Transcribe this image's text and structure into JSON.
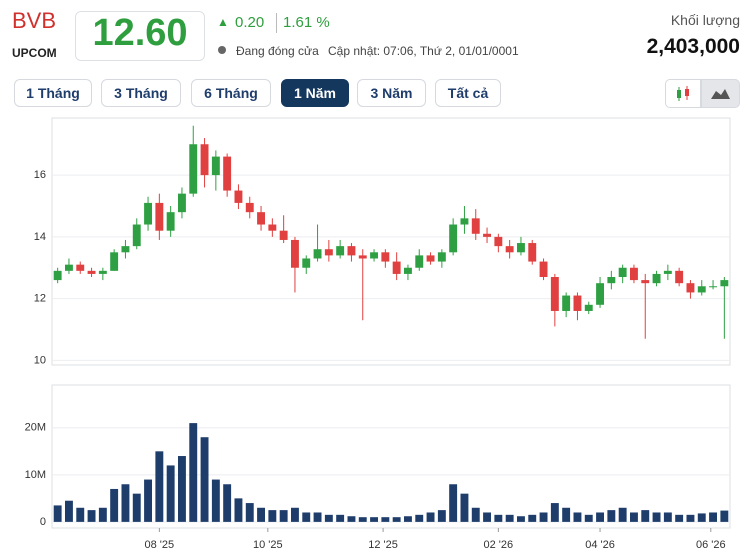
{
  "header": {
    "symbol": "BVB",
    "exchange": "UPCOM",
    "price": "12.60",
    "change": "0.20",
    "change_pct": "1.61 %",
    "status": "Đang đóng cửa",
    "updated": "Cập nhật: 07:06, Thứ 2, 01/01/0001",
    "volume_label": "Khối lượng",
    "volume": "2,403,000"
  },
  "ranges": {
    "buttons": [
      "1 Tháng",
      "3 Tháng",
      "6 Tháng",
      "1 Năm",
      "3 Năm",
      "Tất cả"
    ],
    "active": 3
  },
  "chart_data": [
    {
      "type": "candlestick",
      "up_color": "#2ea043",
      "down_color": "#e0403f",
      "grid": true,
      "open": [
        12.6,
        12.9,
        13.1,
        12.9,
        12.8,
        12.9,
        13.5,
        13.7,
        14.4,
        15.1,
        14.2,
        14.8,
        15.4,
        17.0,
        16.0,
        16.6,
        15.5,
        15.1,
        14.8,
        14.4,
        14.2,
        13.9,
        13.0,
        13.3,
        13.6,
        13.4,
        13.7,
        13.4,
        13.3,
        13.5,
        13.2,
        12.8,
        13.0,
        13.4,
        13.2,
        13.5,
        14.4,
        14.6,
        14.1,
        14.0,
        13.7,
        13.5,
        13.8,
        13.2,
        12.7,
        11.6,
        12.1,
        11.6,
        11.8,
        12.5,
        12.7,
        13.0,
        12.6,
        12.5,
        12.8,
        12.9,
        12.5,
        12.2,
        12.4,
        12.4
      ],
      "high": [
        13.0,
        13.3,
        13.2,
        13.0,
        13.0,
        13.6,
        13.9,
        14.6,
        15.3,
        15.4,
        15.0,
        15.6,
        17.6,
        17.2,
        16.8,
        16.7,
        15.7,
        15.3,
        15.0,
        14.6,
        14.7,
        14.0,
        13.4,
        14.4,
        13.9,
        13.9,
        13.8,
        13.6,
        13.6,
        13.6,
        13.5,
        13.1,
        13.6,
        13.5,
        13.6,
        14.6,
        15.0,
        14.9,
        14.3,
        14.1,
        13.9,
        14.0,
        13.9,
        13.3,
        12.8,
        12.2,
        12.2,
        11.9,
        12.7,
        12.9,
        13.1,
        13.1,
        12.8,
        12.9,
        13.1,
        13.0,
        12.6,
        12.6,
        12.6,
        12.7
      ],
      "low": [
        12.5,
        12.8,
        12.8,
        12.7,
        12.6,
        12.9,
        13.3,
        13.6,
        14.2,
        13.9,
        14.0,
        14.6,
        15.3,
        15.6,
        15.5,
        15.3,
        14.9,
        14.6,
        14.2,
        14.0,
        13.8,
        12.2,
        12.8,
        13.2,
        13.2,
        13.3,
        13.2,
        11.3,
        13.2,
        13.0,
        12.6,
        12.6,
        12.9,
        13.1,
        13.0,
        13.4,
        14.1,
        13.9,
        13.8,
        13.5,
        13.3,
        13.4,
        13.1,
        12.6,
        11.1,
        11.4,
        11.3,
        11.5,
        11.7,
        12.3,
        12.5,
        12.5,
        10.7,
        12.4,
        12.6,
        12.4,
        12.0,
        12.1,
        12.3,
        10.7
      ],
      "close": [
        12.9,
        13.1,
        12.9,
        12.8,
        12.9,
        13.5,
        13.7,
        14.4,
        15.1,
        14.2,
        14.8,
        15.4,
        17.0,
        16.0,
        16.6,
        15.5,
        15.1,
        14.8,
        14.4,
        14.2,
        13.9,
        13.0,
        13.3,
        13.6,
        13.4,
        13.7,
        13.4,
        13.3,
        13.5,
        13.2,
        12.8,
        13.0,
        13.4,
        13.2,
        13.5,
        14.4,
        14.6,
        14.1,
        14.0,
        13.7,
        13.5,
        13.8,
        13.2,
        12.7,
        11.6,
        12.1,
        11.6,
        11.8,
        12.5,
        12.7,
        13.0,
        12.6,
        12.5,
        12.8,
        12.9,
        12.5,
        12.2,
        12.4,
        12.4,
        12.6
      ],
      "ylim": [
        9.85,
        17.85
      ],
      "yticks": [
        10,
        12,
        14,
        16
      ]
    },
    {
      "type": "bar",
      "color": "#1f3d6b",
      "grid": true,
      "values": [
        3500000,
        4500000,
        3000000,
        2500000,
        3000000,
        7000000,
        8000000,
        6000000,
        9000000,
        15000000,
        12000000,
        14000000,
        21000000,
        18000000,
        9000000,
        8000000,
        5000000,
        4000000,
        3000000,
        2500000,
        2500000,
        3000000,
        2000000,
        2000000,
        1500000,
        1500000,
        1200000,
        1000000,
        1000000,
        1000000,
        1000000,
        1200000,
        1500000,
        2000000,
        2500000,
        8000000,
        6000000,
        3000000,
        2000000,
        1500000,
        1500000,
        1200000,
        1500000,
        2000000,
        4000000,
        3000000,
        2000000,
        1500000,
        2000000,
        2500000,
        3000000,
        2000000,
        2500000,
        2000000,
        2000000,
        1500000,
        1500000,
        1800000,
        2000000,
        2403000
      ],
      "ylim": [
        -1300000,
        29100000
      ],
      "yticks": [
        0,
        {
          "value": 10000000,
          "label": "10M"
        },
        {
          "value": 20000000,
          "label": "20M"
        }
      ],
      "xticks": [
        {
          "value": 9,
          "label": "08 '25"
        },
        {
          "value": 18.6,
          "label": "10 '25"
        },
        {
          "value": 28.8,
          "label": "12 '25"
        },
        {
          "value": 39,
          "label": "02 '26"
        },
        {
          "value": 48,
          "label": "04 '26"
        },
        {
          "value": 57.8,
          "label": "06 '26"
        }
      ]
    }
  ]
}
